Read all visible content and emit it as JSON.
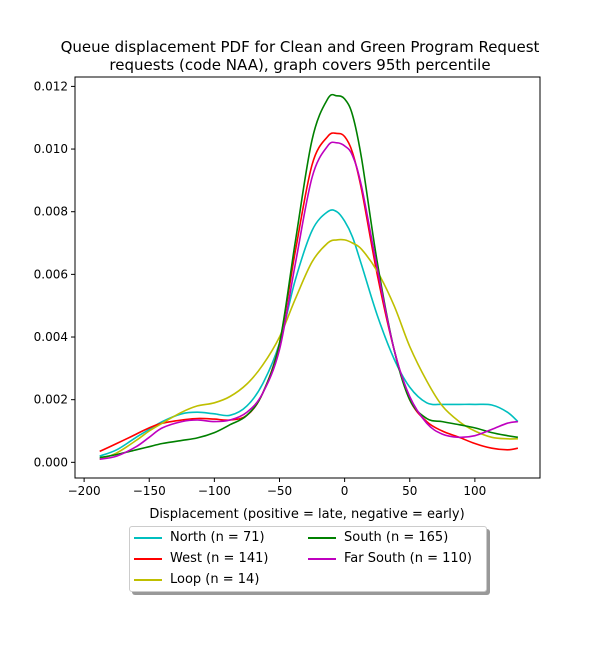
{
  "title_lines": [
    "Queue displacement PDF for Clean and Green Program Request",
    "requests (code NAA), graph covers 95th percentile"
  ],
  "chart_data": {
    "type": "line",
    "title": "Queue displacement PDF for Clean and Green Program Request requests (code NAA), graph covers 95th percentile",
    "xlabel": "Displacement (positive = late, negative = early)",
    "ylabel": "",
    "xlim": [
      -207,
      150
    ],
    "ylim": [
      -0.0005,
      0.0123
    ],
    "xticks": [
      -200,
      -150,
      -100,
      -50,
      0,
      50,
      100
    ],
    "xtick_labels": [
      "−200",
      "−150",
      "−100",
      "−50",
      "0",
      "50",
      "100"
    ],
    "yticks": [
      0.0,
      0.002,
      0.004,
      0.006,
      0.008,
      0.01,
      0.012
    ],
    "ytick_labels": [
      "0.000",
      "0.002",
      "0.004",
      "0.006",
      "0.008",
      "0.010",
      "0.012"
    ],
    "grid": false,
    "legend_position": "below",
    "legend_columns": 2,
    "x": [
      -188,
      -175,
      -160,
      -150,
      -140,
      -125,
      -113,
      -100,
      -88,
      -75,
      -63,
      -50,
      -38,
      -25,
      -13,
      -6,
      0,
      6,
      13,
      25,
      38,
      50,
      63,
      75,
      88,
      100,
      113,
      125,
      133
    ],
    "series": [
      {
        "name": "North (n = 71)",
        "color": "#00bfbf",
        "values": [
          0.0002,
          0.0004,
          0.0008,
          0.00105,
          0.0013,
          0.00155,
          0.0016,
          0.00155,
          0.0015,
          0.0018,
          0.0025,
          0.0038,
          0.0058,
          0.0074,
          0.008,
          0.008,
          0.0077,
          0.0072,
          0.0063,
          0.0047,
          0.0033,
          0.0024,
          0.0019,
          0.00185,
          0.00185,
          0.00185,
          0.00183,
          0.0016,
          0.0013
        ]
      },
      {
        "name": "West (n = 141)",
        "color": "#ff0000",
        "values": [
          0.00035,
          0.0006,
          0.0009,
          0.0011,
          0.00125,
          0.00135,
          0.0014,
          0.00138,
          0.00135,
          0.0015,
          0.0022,
          0.0038,
          0.0067,
          0.0095,
          0.0104,
          0.0105,
          0.0104,
          0.0099,
          0.0087,
          0.006,
          0.0036,
          0.002,
          0.0013,
          0.001,
          0.0008,
          0.0006,
          0.00045,
          0.0004,
          0.00045
        ]
      },
      {
        "name": "Loop (n = 14)",
        "color": "#bfbf00",
        "values": [
          0.0001,
          0.0003,
          0.0007,
          0.001,
          0.00125,
          0.0016,
          0.0018,
          0.0019,
          0.0021,
          0.0025,
          0.0031,
          0.004,
          0.0052,
          0.0064,
          0.007,
          0.0071,
          0.0071,
          0.007,
          0.0068,
          0.0061,
          0.005,
          0.0037,
          0.0026,
          0.0018,
          0.0013,
          0.001,
          0.0008,
          0.00075,
          0.00075
        ]
      },
      {
        "name": "South (n = 165)",
        "color": "#008000",
        "values": [
          0.00015,
          0.00025,
          0.0004,
          0.0005,
          0.0006,
          0.0007,
          0.00078,
          0.00095,
          0.0012,
          0.0015,
          0.0022,
          0.0038,
          0.007,
          0.0103,
          0.0116,
          0.0117,
          0.0116,
          0.0111,
          0.0097,
          0.0064,
          0.0036,
          0.002,
          0.0014,
          0.0013,
          0.0012,
          0.0011,
          0.00095,
          0.00085,
          0.0008
        ]
      },
      {
        "name": "Far South (n = 110)",
        "color": "#bf00bf",
        "values": [
          0.0001,
          0.0002,
          0.0005,
          0.0008,
          0.0011,
          0.0013,
          0.00135,
          0.0013,
          0.00135,
          0.0016,
          0.0022,
          0.0036,
          0.0063,
          0.0091,
          0.0101,
          0.0102,
          0.0101,
          0.0098,
          0.0088,
          0.0062,
          0.0036,
          0.0021,
          0.00125,
          0.0009,
          0.0008,
          0.00085,
          0.00105,
          0.00125,
          0.0013
        ]
      }
    ]
  }
}
